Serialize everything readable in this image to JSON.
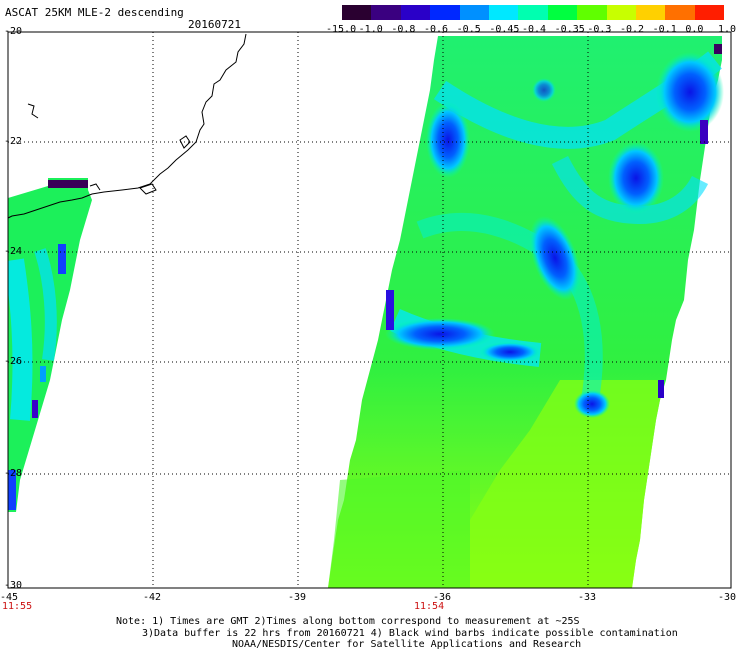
{
  "title": "ASCAT 25KM MLE-2 descending",
  "date": "20160721",
  "colorbar": {
    "labels": [
      "-15.0",
      "-1.0",
      "-0.8",
      "-0.6",
      "-0.5",
      "-0.45",
      "-0.4",
      "-0.35",
      "-0.3",
      "-0.2",
      "-0.1",
      "0.0",
      "1.0"
    ],
    "colors": [
      "#2a0030",
      "#3a0080",
      "#2a00c8",
      "#0028ff",
      "#0090ff",
      "#00e8ff",
      "#00ffb0",
      "#00ff40",
      "#60ff00",
      "#c8ff00",
      "#ffd000",
      "#ff7000",
      "#ff1e00"
    ]
  },
  "axes": {
    "y_ticks": [
      "-20",
      "-22",
      "-24",
      "-26",
      "-28",
      "-30"
    ],
    "x_ticks": [
      "-45",
      "-42",
      "-39",
      "-36",
      "-33",
      "-30"
    ]
  },
  "times": [
    {
      "label": "11:55"
    },
    {
      "label": "11:54"
    }
  ],
  "notes": [
    "Note: 1) Times are GMT 2)Times along bottom correspond to measurement at ~25S",
    "3)Data buffer is 22 hrs from 20160721 4) Black wind barbs indicate possible contamination",
    "NOAA/NESDIS/Center for Satellite Applications and Research"
  ]
}
